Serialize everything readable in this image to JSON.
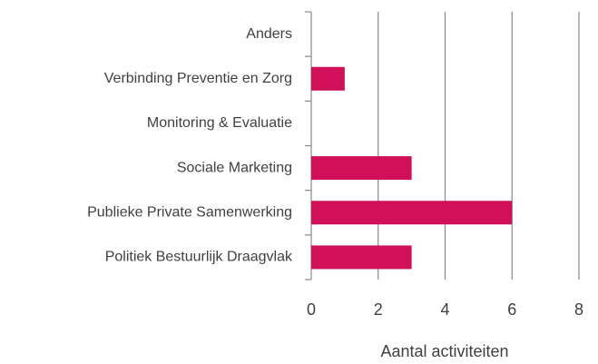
{
  "chart_data": {
    "type": "bar",
    "orientation": "horizontal",
    "categories": [
      "Anders",
      "Verbinding Preventie en Zorg",
      "Monitoring & Evaluatie",
      "Sociale Marketing",
      "Publieke Private Samenwerking",
      "Politiek Bestuurlijk Draagvlak"
    ],
    "values": [
      0,
      1,
      0,
      3,
      6,
      3
    ],
    "color": "#d1105a",
    "xlim": [
      0,
      8
    ],
    "xticks": [
      0,
      2,
      4,
      6,
      8
    ],
    "grid": true,
    "x_label": "Aantal activiteiten"
  }
}
